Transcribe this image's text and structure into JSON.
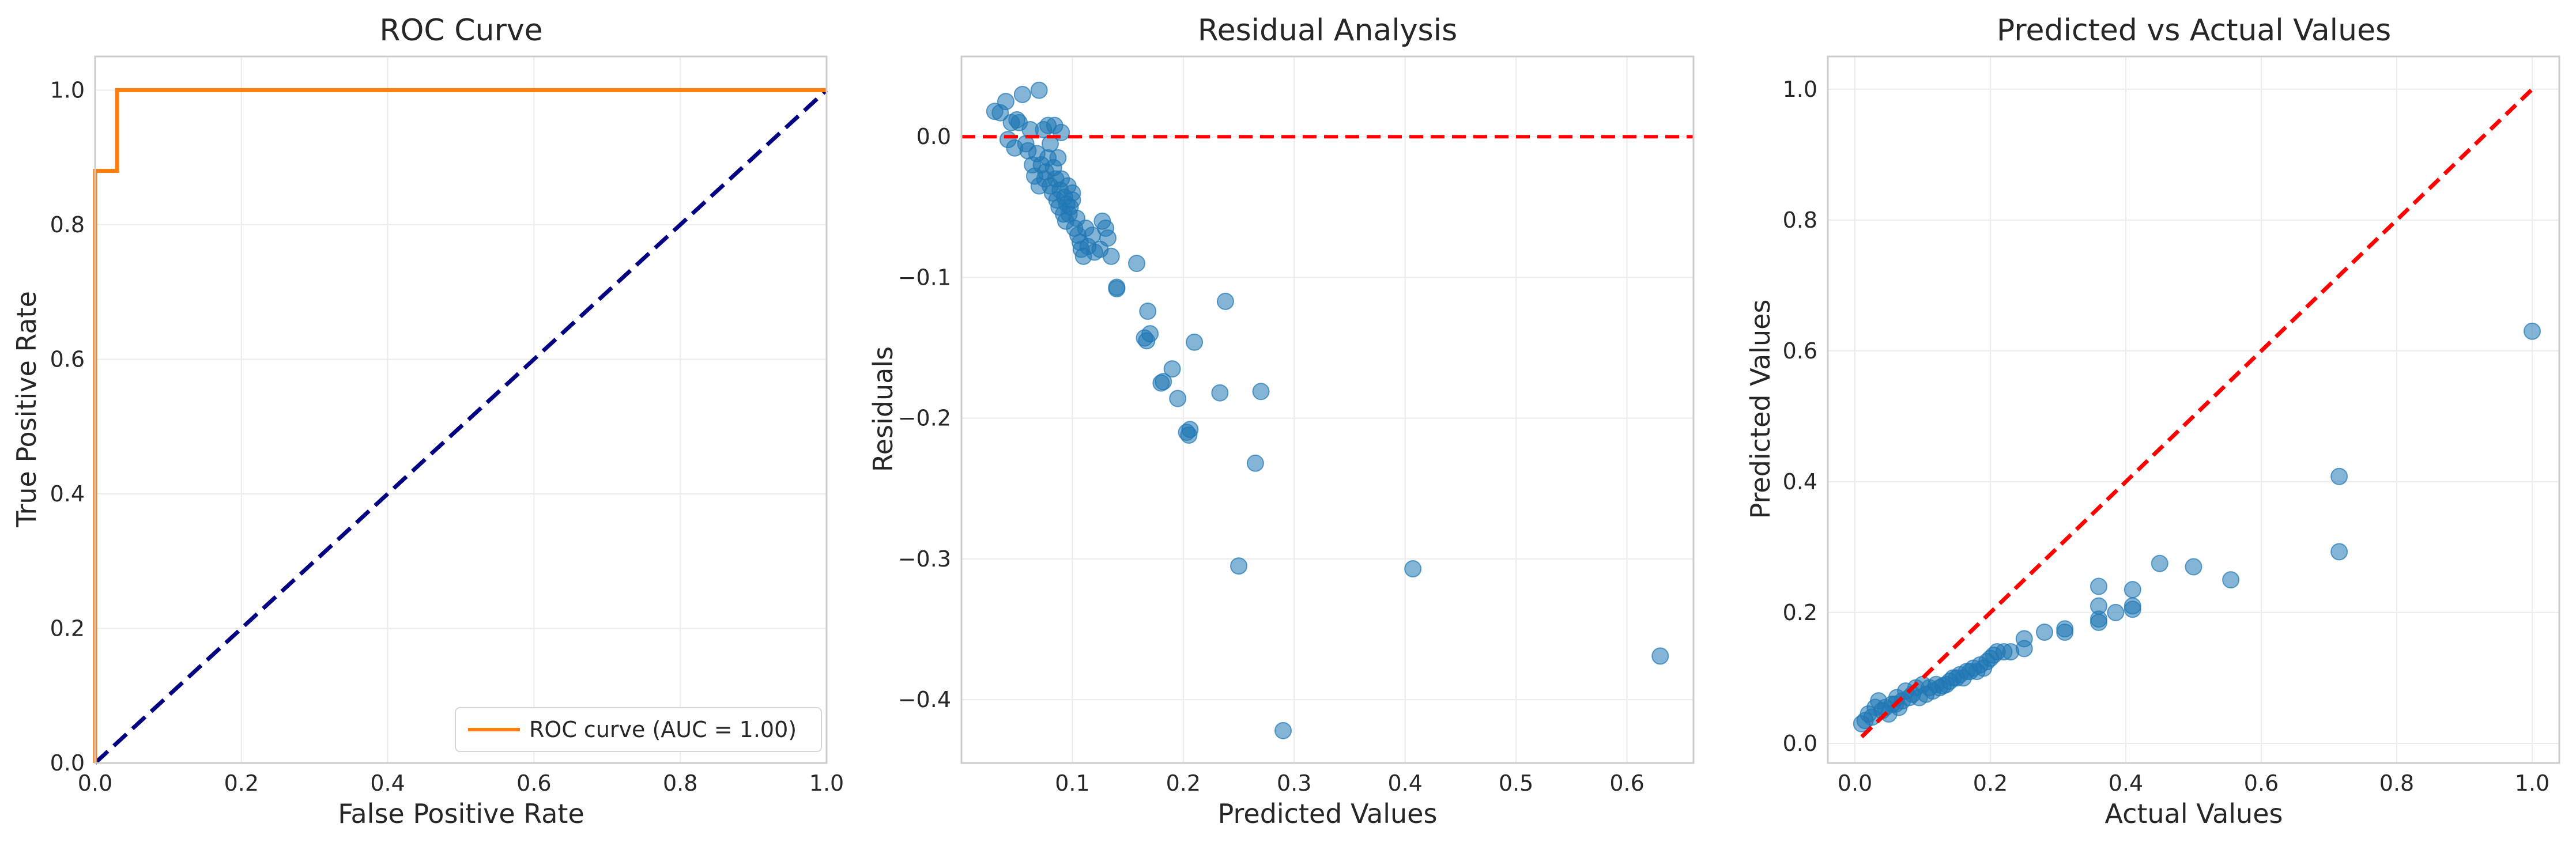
{
  "colors": {
    "background": "#ffffff",
    "grid": "#ebebeb",
    "spine": "#cccccc",
    "roc_line": "#ff7f0e",
    "chance_line": "#000080",
    "scatter_points": "#1f77b4",
    "reference_line": "#ff0000"
  },
  "chart_data": [
    {
      "type": "line",
      "title": "ROC Curve",
      "xlabel": "False Positive Rate",
      "ylabel": "True Positive Rate",
      "xlim": [
        0.0,
        1.0
      ],
      "ylim": [
        0.0,
        1.05
      ],
      "grid": true,
      "xticks": [
        0.0,
        0.2,
        0.4,
        0.6,
        0.8,
        1.0
      ],
      "xtick_labels": [
        "0.0",
        "0.2",
        "0.4",
        "0.6",
        "0.8",
        "1.0"
      ],
      "yticks": [
        0.0,
        0.2,
        0.4,
        0.6,
        0.8,
        1.0
      ],
      "ytick_labels": [
        "0.0",
        "0.2",
        "0.4",
        "0.6",
        "0.8",
        "1.0"
      ],
      "legend_position": "lower-right",
      "series": [
        {
          "name": "ROC curve (AUC = 1.00)",
          "color": "#ff7f0e",
          "style": "solid",
          "x": [
            0.0,
            0.0,
            0.0,
            0.03,
            0.03,
            1.0
          ],
          "y": [
            0.0,
            0.88,
            0.88,
            0.88,
            1.0,
            1.0
          ]
        },
        {
          "name": "chance",
          "color": "#000080",
          "style": "dashed",
          "x": [
            0.0,
            1.0
          ],
          "y": [
            0.0,
            1.0
          ]
        }
      ],
      "legend": [
        "ROC curve (AUC = 1.00)"
      ]
    },
    {
      "type": "scatter",
      "title": "Residual Analysis",
      "xlabel": "Predicted Values",
      "ylabel": "Residuals",
      "xlim": [
        0.0,
        0.66
      ],
      "ylim": [
        -0.445,
        0.057
      ],
      "grid": true,
      "xticks": [
        0.1,
        0.2,
        0.3,
        0.4,
        0.5,
        0.6
      ],
      "xtick_labels": [
        "0.1",
        "0.2",
        "0.3",
        "0.4",
        "0.5",
        "0.6"
      ],
      "yticks": [
        0.0,
        -0.1,
        -0.2,
        -0.3,
        -0.4
      ],
      "ytick_labels": [
        "0.0",
        "−0.1",
        "−0.2",
        "−0.3",
        "−0.4"
      ],
      "reference_line": {
        "y": 0.0,
        "color": "#ff0000",
        "style": "dashed"
      },
      "points": [
        [
          0.03,
          0.018
        ],
        [
          0.035,
          0.017
        ],
        [
          0.04,
          0.025
        ],
        [
          0.042,
          -0.002
        ],
        [
          0.045,
          0.01
        ],
        [
          0.048,
          -0.008
        ],
        [
          0.05,
          0.012
        ],
        [
          0.052,
          0.01
        ],
        [
          0.055,
          0.03
        ],
        [
          0.058,
          -0.005
        ],
        [
          0.06,
          -0.01
        ],
        [
          0.062,
          0.005
        ],
        [
          0.064,
          -0.02
        ],
        [
          0.066,
          -0.028
        ],
        [
          0.068,
          -0.012
        ],
        [
          0.07,
          0.033
        ],
        [
          0.07,
          -0.035
        ],
        [
          0.072,
          -0.02
        ],
        [
          0.074,
          0.005
        ],
        [
          0.075,
          -0.03
        ],
        [
          0.076,
          -0.025
        ],
        [
          0.078,
          -0.015
        ],
        [
          0.078,
          0.008
        ],
        [
          0.08,
          -0.035
        ],
        [
          0.08,
          -0.005
        ],
        [
          0.082,
          -0.04
        ],
        [
          0.083,
          -0.022
        ],
        [
          0.084,
          0.008
        ],
        [
          0.085,
          -0.03
        ],
        [
          0.086,
          -0.045
        ],
        [
          0.087,
          -0.015
        ],
        [
          0.088,
          -0.05
        ],
        [
          0.089,
          -0.038
        ],
        [
          0.09,
          0.003
        ],
        [
          0.09,
          -0.03
        ],
        [
          0.092,
          -0.055
        ],
        [
          0.093,
          -0.043
        ],
        [
          0.094,
          -0.06
        ],
        [
          0.095,
          -0.048
        ],
        [
          0.096,
          -0.035
        ],
        [
          0.097,
          -0.055
        ],
        [
          0.098,
          -0.05
        ],
        [
          0.1,
          -0.045
        ],
        [
          0.1,
          -0.04
        ],
        [
          0.102,
          -0.065
        ],
        [
          0.104,
          -0.058
        ],
        [
          0.105,
          -0.07
        ],
        [
          0.107,
          -0.075
        ],
        [
          0.108,
          -0.08
        ],
        [
          0.11,
          -0.085
        ],
        [
          0.112,
          -0.065
        ],
        [
          0.114,
          -0.078
        ],
        [
          0.118,
          -0.07
        ],
        [
          0.12,
          -0.082
        ],
        [
          0.125,
          -0.08
        ],
        [
          0.127,
          -0.06
        ],
        [
          0.13,
          -0.065
        ],
        [
          0.132,
          -0.072
        ],
        [
          0.135,
          -0.085
        ],
        [
          0.14,
          -0.108
        ],
        [
          0.14,
          -0.107
        ],
        [
          0.158,
          -0.09
        ],
        [
          0.165,
          -0.143
        ],
        [
          0.167,
          -0.145
        ],
        [
          0.168,
          -0.124
        ],
        [
          0.17,
          -0.14
        ],
        [
          0.18,
          -0.175
        ],
        [
          0.182,
          -0.174
        ],
        [
          0.19,
          -0.165
        ],
        [
          0.195,
          -0.186
        ],
        [
          0.203,
          -0.21
        ],
        [
          0.205,
          -0.212
        ],
        [
          0.206,
          -0.208
        ],
        [
          0.21,
          -0.146
        ],
        [
          0.233,
          -0.182
        ],
        [
          0.238,
          -0.117
        ],
        [
          0.25,
          -0.305
        ],
        [
          0.265,
          -0.232
        ],
        [
          0.27,
          -0.181
        ],
        [
          0.29,
          -0.422
        ],
        [
          0.407,
          -0.307
        ],
        [
          0.63,
          -0.369
        ]
      ]
    },
    {
      "type": "scatter",
      "title": "Predicted vs Actual Values",
      "xlabel": "Actual Values",
      "ylabel": "Predicted Values",
      "xlim": [
        -0.04,
        1.04
      ],
      "ylim": [
        -0.03,
        1.05
      ],
      "grid": true,
      "xticks": [
        0.0,
        0.2,
        0.4,
        0.6,
        0.8,
        1.0
      ],
      "xtick_labels": [
        "0.0",
        "0.2",
        "0.4",
        "0.6",
        "0.8",
        "1.0"
      ],
      "yticks": [
        0.0,
        0.2,
        0.4,
        0.6,
        0.8,
        1.0
      ],
      "ytick_labels": [
        "0.0",
        "0.2",
        "0.4",
        "0.6",
        "0.8",
        "1.0"
      ],
      "reference_line": {
        "x": [
          0.01,
          1.0
        ],
        "y": [
          0.01,
          1.0
        ],
        "color": "#ff0000",
        "style": "dashed"
      },
      "points": [
        [
          0.01,
          0.03
        ],
        [
          0.015,
          0.035
        ],
        [
          0.02,
          0.045
        ],
        [
          0.025,
          0.04
        ],
        [
          0.03,
          0.055
        ],
        [
          0.035,
          0.065
        ],
        [
          0.04,
          0.05
        ],
        [
          0.045,
          0.055
        ],
        [
          0.05,
          0.045
        ],
        [
          0.055,
          0.06
        ],
        [
          0.06,
          0.06
        ],
        [
          0.062,
          0.07
        ],
        [
          0.065,
          0.055
        ],
        [
          0.07,
          0.065
        ],
        [
          0.075,
          0.08
        ],
        [
          0.08,
          0.07
        ],
        [
          0.085,
          0.075
        ],
        [
          0.09,
          0.085
        ],
        [
          0.095,
          0.07
        ],
        [
          0.1,
          0.09
        ],
        [
          0.105,
          0.075
        ],
        [
          0.11,
          0.085
        ],
        [
          0.115,
          0.08
        ],
        [
          0.12,
          0.09
        ],
        [
          0.125,
          0.085
        ],
        [
          0.13,
          0.088
        ],
        [
          0.135,
          0.09
        ],
        [
          0.14,
          0.095
        ],
        [
          0.145,
          0.1
        ],
        [
          0.15,
          0.1
        ],
        [
          0.155,
          0.105
        ],
        [
          0.16,
          0.1
        ],
        [
          0.165,
          0.11
        ],
        [
          0.17,
          0.11
        ],
        [
          0.175,
          0.115
        ],
        [
          0.18,
          0.11
        ],
        [
          0.185,
          0.12
        ],
        [
          0.19,
          0.115
        ],
        [
          0.195,
          0.125
        ],
        [
          0.2,
          0.13
        ],
        [
          0.205,
          0.135
        ],
        [
          0.21,
          0.14
        ],
        [
          0.22,
          0.14
        ],
        [
          0.23,
          0.14
        ],
        [
          0.25,
          0.145
        ],
        [
          0.25,
          0.16
        ],
        [
          0.28,
          0.17
        ],
        [
          0.31,
          0.17
        ],
        [
          0.31,
          0.175
        ],
        [
          0.36,
          0.185
        ],
        [
          0.36,
          0.19
        ],
        [
          0.36,
          0.21
        ],
        [
          0.36,
          0.24
        ],
        [
          0.385,
          0.2
        ],
        [
          0.41,
          0.205
        ],
        [
          0.41,
          0.21
        ],
        [
          0.41,
          0.235
        ],
        [
          0.45,
          0.275
        ],
        [
          0.5,
          0.27
        ],
        [
          0.555,
          0.25
        ],
        [
          0.715,
          0.293
        ],
        [
          0.715,
          0.408
        ],
        [
          1.0,
          0.63
        ]
      ]
    }
  ]
}
